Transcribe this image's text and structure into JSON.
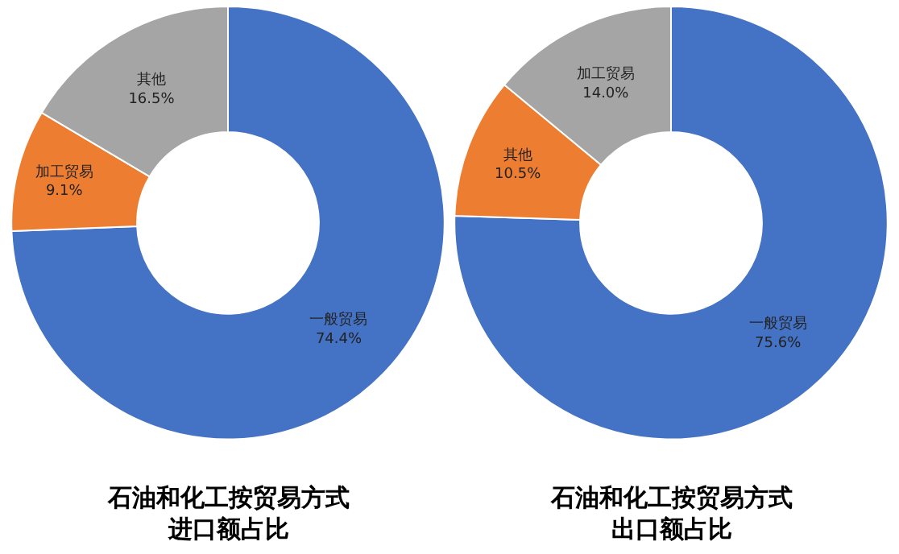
{
  "chart_data": [
    {
      "type": "donut",
      "title": "石油和化工按贸易方式进口额占比",
      "categories": [
        "一般贸易",
        "加工贸易",
        "其他"
      ],
      "values": [
        74.4,
        9.1,
        16.5
      ],
      "colors": [
        "#4472c4",
        "#ed7d31",
        "#a5a5a5"
      ],
      "value_labels": [
        "74.4%",
        "9.1%",
        "16.5%"
      ],
      "legend": false
    },
    {
      "type": "donut",
      "title": "石油和化工按贸易方式出口额占比",
      "categories": [
        "一般贸易",
        "其他",
        "加工贸易"
      ],
      "values": [
        75.6,
        10.5,
        14.0
      ],
      "colors": [
        "#4472c4",
        "#ed7d31",
        "#a5a5a5"
      ],
      "value_labels": [
        "75.6%",
        "10.5%",
        "14.0%"
      ],
      "legend": false
    }
  ]
}
